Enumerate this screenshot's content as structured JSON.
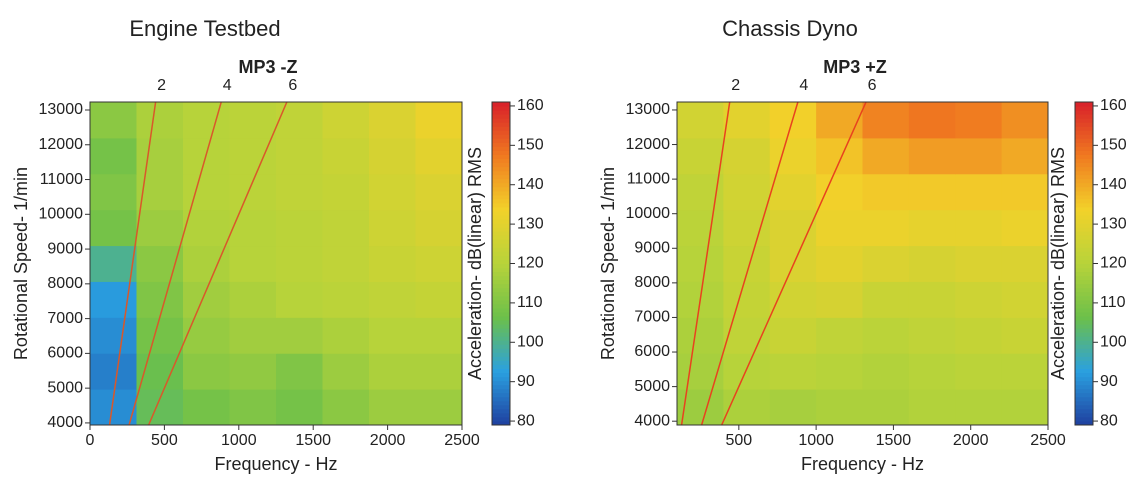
{
  "chart_data": [
    {
      "type": "heatmap",
      "title": "Engine Testbed",
      "subtitle": "MP3 -Z",
      "x_label": "Frequency - Hz",
      "y_label": "Rotational Speed- 1/min",
      "colorbar_label": "Acceleration- dB(linear) RMS",
      "xlim": [
        0,
        2500
      ],
      "xticks": [
        0,
        500,
        1000,
        1500,
        2000,
        2500
      ],
      "ylim": [
        3940,
        13230
      ],
      "yticks": [
        4000,
        5000,
        6000,
        7000,
        8000,
        9000,
        10000,
        11000,
        12000,
        13000
      ],
      "zlim": [
        79,
        161
      ],
      "zticks": [
        80,
        90,
        100,
        110,
        120,
        130,
        140,
        150,
        160
      ],
      "colorscale": [
        "#1f3f9f",
        "#2aa0e0",
        "#6cc04a",
        "#b7d33a",
        "#f2d22a",
        "#f07a20",
        "#d8202a"
      ],
      "orders": [
        2,
        4,
        6
      ],
      "order_color": "#d9582a",
      "z": [
        [
          90,
          105,
          108,
          110,
          108,
          112,
          115,
          115
        ],
        [
          88,
          106,
          112,
          113,
          110,
          115,
          118,
          118
        ],
        [
          90,
          108,
          114,
          116,
          116,
          118,
          120,
          120
        ],
        [
          92,
          110,
          116,
          118,
          120,
          121,
          122,
          123
        ],
        [
          100,
          112,
          118,
          120,
          121,
          122,
          124,
          125
        ],
        [
          108,
          115,
          119,
          120,
          121,
          122,
          125,
          127
        ],
        [
          110,
          117,
          120,
          121,
          122,
          123,
          126,
          128
        ],
        [
          108,
          117,
          120,
          121,
          122,
          124,
          127,
          130
        ],
        [
          112,
          118,
          120,
          121,
          122,
          125,
          128,
          132
        ]
      ]
    },
    {
      "type": "heatmap",
      "title": "Chassis Dyno",
      "subtitle": "MP3 +Z",
      "x_label": "Frequency - Hz",
      "y_label": "Rotational Speed- 1/min",
      "colorbar_label": "Acceleration- dB(linear) RMS",
      "xlim": [
        100,
        2500
      ],
      "xticks": [
        500,
        1000,
        1500,
        2000,
        2500
      ],
      "ylim": [
        3890,
        13230
      ],
      "yticks": [
        4000,
        5000,
        6000,
        7000,
        8000,
        9000,
        10000,
        11000,
        12000,
        13000
      ],
      "zlim": [
        79,
        161
      ],
      "zticks": [
        80,
        90,
        100,
        110,
        120,
        130,
        140,
        150,
        160
      ],
      "colorscale": [
        "#1f3f9f",
        "#2aa0e0",
        "#6cc04a",
        "#b7d33a",
        "#f2d22a",
        "#f07a20",
        "#d8202a"
      ],
      "orders": [
        2,
        4,
        6
      ],
      "order_color": "#e8421e",
      "z": [
        [
          115,
          118,
          117,
          118,
          118,
          119,
          119,
          119
        ],
        [
          117,
          120,
          121,
          120,
          119,
          120,
          121,
          121
        ],
        [
          118,
          122,
          124,
          122,
          121,
          122,
          123,
          124
        ],
        [
          119,
          123,
          126,
          127,
          124,
          124,
          125,
          126
        ],
        [
          120,
          124,
          128,
          130,
          128,
          127,
          128,
          128
        ],
        [
          121,
          125,
          128,
          132,
          132,
          131,
          131,
          132
        ],
        [
          122,
          126,
          130,
          134,
          135,
          135,
          135,
          135
        ],
        [
          124,
          127,
          132,
          136,
          140,
          142,
          142,
          140
        ],
        [
          126,
          130,
          134,
          140,
          146,
          148,
          147,
          144
        ]
      ]
    }
  ]
}
